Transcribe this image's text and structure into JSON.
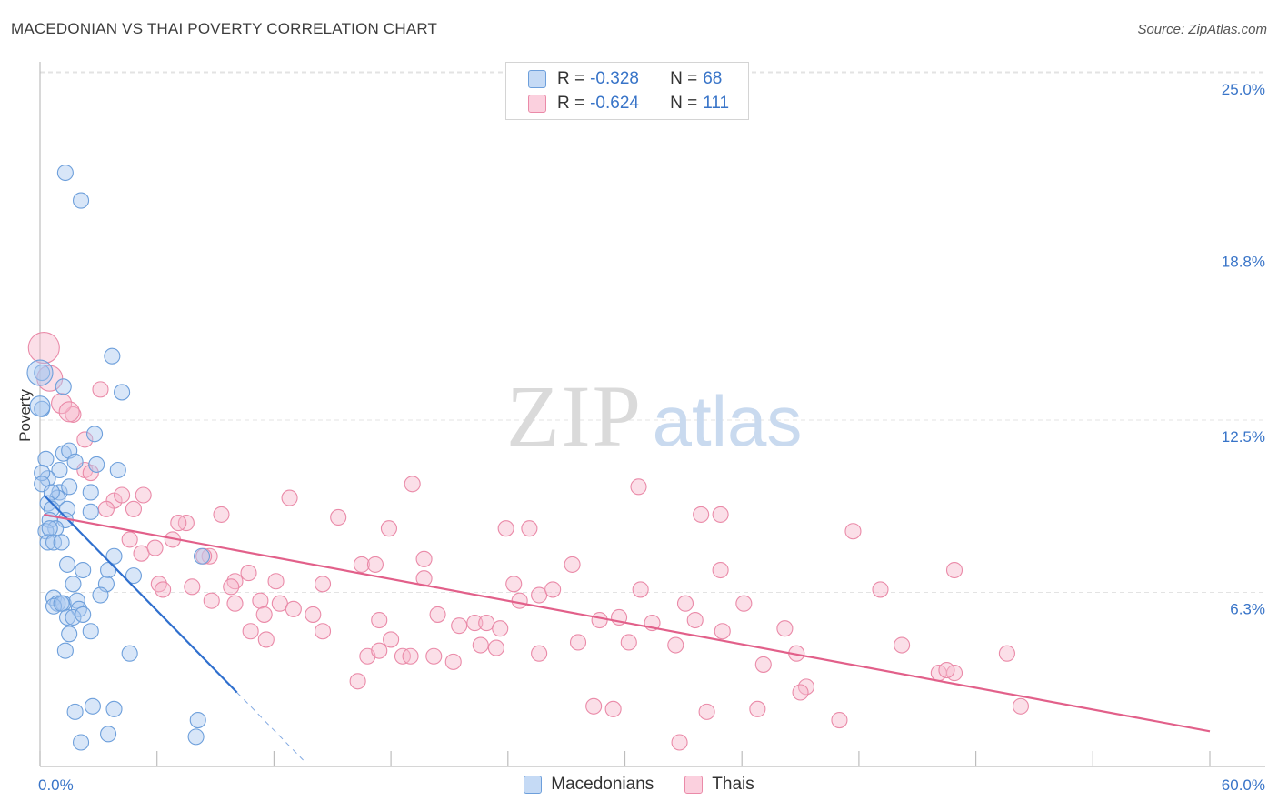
{
  "title": "MACEDONIAN VS THAI POVERTY CORRELATION CHART",
  "source": "Source: ZipAtlas.com",
  "watermark": {
    "zip": "ZIP",
    "atlas": "atlas"
  },
  "legend": {
    "rows": [
      {
        "r_label": "R =",
        "r_value": "-0.328",
        "n_label": "N =",
        "n_value": "68"
      },
      {
        "r_label": "R =",
        "r_value": "-0.624",
        "n_label": "N =",
        "n_value": "111"
      }
    ]
  },
  "colors": {
    "blue_fill": "#a9c8ef",
    "blue_stroke": "#6d9fdb",
    "blue_line": "#2f6fce",
    "pink_fill": "#f6b9cc",
    "pink_stroke": "#ea8aa8",
    "pink_line": "#e2608a",
    "tick_label": "#3874c8",
    "grid": "#e3e3e3"
  },
  "chart_data": {
    "type": "scatter",
    "title": "MACEDONIAN VS THAI POVERTY CORRELATION CHART",
    "xlabel": "",
    "ylabel": "Poverty",
    "xlim": [
      0,
      60
    ],
    "ylim": [
      0,
      25
    ],
    "x_tick_labels": [
      "0.0%",
      "60.0%"
    ],
    "y_ticks": [
      6.3,
      12.5,
      18.8,
      25.0
    ],
    "y_tick_labels": [
      "6.3%",
      "12.5%",
      "18.8%",
      "25.0%"
    ],
    "grid": true,
    "legend_position": "top-center",
    "series": [
      {
        "name": "Macedonians",
        "color": "blue",
        "r": -0.328,
        "n": 68,
        "trend": {
          "x0": 0.2,
          "y0": 9.8,
          "x1": 10.1,
          "y1": 2.7,
          "dashed_to_x": 13.5
        },
        "points": [
          [
            1.3,
            21.4
          ],
          [
            2.1,
            20.4
          ],
          [
            0.1,
            14.2
          ],
          [
            3.7,
            14.8
          ],
          [
            4.2,
            13.5
          ],
          [
            1.2,
            13.7
          ],
          [
            0.1,
            12.9
          ],
          [
            2.8,
            12.0
          ],
          [
            0.3,
            11.1
          ],
          [
            1.2,
            11.3
          ],
          [
            1.5,
            11.4
          ],
          [
            1.8,
            11.0
          ],
          [
            2.9,
            10.9
          ],
          [
            4.0,
            10.7
          ],
          [
            1.0,
            10.7
          ],
          [
            0.4,
            10.4
          ],
          [
            0.1,
            10.6
          ],
          [
            0.1,
            10.2
          ],
          [
            1.0,
            9.9
          ],
          [
            0.9,
            9.7
          ],
          [
            1.5,
            10.1
          ],
          [
            0.6,
            9.9
          ],
          [
            2.6,
            9.9
          ],
          [
            0.4,
            9.5
          ],
          [
            0.6,
            9.3
          ],
          [
            1.4,
            9.3
          ],
          [
            0.5,
            8.9
          ],
          [
            1.3,
            8.9
          ],
          [
            0.8,
            8.6
          ],
          [
            2.6,
            9.2
          ],
          [
            0.3,
            8.5
          ],
          [
            0.5,
            8.6
          ],
          [
            0.4,
            8.1
          ],
          [
            0.7,
            8.1
          ],
          [
            1.1,
            8.1
          ],
          [
            3.8,
            7.6
          ],
          [
            8.3,
            7.6
          ],
          [
            1.4,
            7.3
          ],
          [
            2.2,
            7.1
          ],
          [
            3.5,
            7.1
          ],
          [
            4.8,
            6.9
          ],
          [
            1.7,
            6.6
          ],
          [
            3.4,
            6.6
          ],
          [
            3.1,
            6.2
          ],
          [
            0.7,
            6.1
          ],
          [
            0.9,
            5.9
          ],
          [
            1.2,
            5.9
          ],
          [
            1.9,
            6.0
          ],
          [
            0.7,
            5.8
          ],
          [
            1.1,
            5.9
          ],
          [
            2.0,
            5.7
          ],
          [
            1.4,
            5.4
          ],
          [
            1.7,
            5.4
          ],
          [
            2.2,
            5.5
          ],
          [
            2.6,
            4.9
          ],
          [
            1.5,
            4.8
          ],
          [
            1.3,
            4.2
          ],
          [
            4.6,
            4.1
          ],
          [
            2.7,
            2.2
          ],
          [
            3.8,
            2.1
          ],
          [
            1.8,
            2.0
          ],
          [
            8.1,
            1.7
          ],
          [
            3.5,
            1.2
          ],
          [
            8.0,
            1.1
          ],
          [
            2.1,
            0.9
          ]
        ],
        "large_points": [
          [
            0.0,
            14.2,
            14
          ],
          [
            0.0,
            13.0,
            11
          ]
        ]
      },
      {
        "name": "Thais",
        "color": "pink",
        "r": -0.624,
        "n": 111,
        "trend": {
          "x0": 0.2,
          "y0": 9.1,
          "x1": 60,
          "y1": 1.3
        },
        "points": [
          [
            3.1,
            13.6
          ],
          [
            1.7,
            12.7
          ],
          [
            2.3,
            11.8
          ],
          [
            2.3,
            10.7
          ],
          [
            2.6,
            10.6
          ],
          [
            3.8,
            9.6
          ],
          [
            4.2,
            9.8
          ],
          [
            5.3,
            9.8
          ],
          [
            3.4,
            9.3
          ],
          [
            4.8,
            9.3
          ],
          [
            9.3,
            9.1
          ],
          [
            7.5,
            8.8
          ],
          [
            7.1,
            8.8
          ],
          [
            6.8,
            8.2
          ],
          [
            4.6,
            8.2
          ],
          [
            5.2,
            7.7
          ],
          [
            5.9,
            7.9
          ],
          [
            8.7,
            7.6
          ],
          [
            8.4,
            7.6
          ],
          [
            12.8,
            9.7
          ],
          [
            15.3,
            9.0
          ],
          [
            17.9,
            8.6
          ],
          [
            19.1,
            10.2
          ],
          [
            23.9,
            8.6
          ],
          [
            25.1,
            8.6
          ],
          [
            30.7,
            10.1
          ],
          [
            33.9,
            9.1
          ],
          [
            34.9,
            9.1
          ],
          [
            41.7,
            8.5
          ],
          [
            46.9,
            7.1
          ],
          [
            16.5,
            7.3
          ],
          [
            17.2,
            7.3
          ],
          [
            19.7,
            7.5
          ],
          [
            27.3,
            7.3
          ],
          [
            34.9,
            7.1
          ],
          [
            10.7,
            7.0
          ],
          [
            6.1,
            6.6
          ],
          [
            10.0,
            6.7
          ],
          [
            14.5,
            6.6
          ],
          [
            19.7,
            6.8
          ],
          [
            24.3,
            6.6
          ],
          [
            7.8,
            6.5
          ],
          [
            9.8,
            6.5
          ],
          [
            12.1,
            6.7
          ],
          [
            25.6,
            6.2
          ],
          [
            26.3,
            6.4
          ],
          [
            30.8,
            6.4
          ],
          [
            43.1,
            6.4
          ],
          [
            6.3,
            6.4
          ],
          [
            8.8,
            6.0
          ],
          [
            10.0,
            5.9
          ],
          [
            11.3,
            6.0
          ],
          [
            12.3,
            5.9
          ],
          [
            13.0,
            5.7
          ],
          [
            14.0,
            5.5
          ],
          [
            11.5,
            5.5
          ],
          [
            20.4,
            5.5
          ],
          [
            24.6,
            6.0
          ],
          [
            33.1,
            5.9
          ],
          [
            36.1,
            5.9
          ],
          [
            22.3,
            5.2
          ],
          [
            22.9,
            5.2
          ],
          [
            17.4,
            5.3
          ],
          [
            21.5,
            5.1
          ],
          [
            23.6,
            5.0
          ],
          [
            28.7,
            5.3
          ],
          [
            29.7,
            5.4
          ],
          [
            31.4,
            5.2
          ],
          [
            33.6,
            5.3
          ],
          [
            14.5,
            4.9
          ],
          [
            10.8,
            4.9
          ],
          [
            11.6,
            4.6
          ],
          [
            16.8,
            4.0
          ],
          [
            17.4,
            4.2
          ],
          [
            18.0,
            4.6
          ],
          [
            18.6,
            4.0
          ],
          [
            19.0,
            4.0
          ],
          [
            20.2,
            4.0
          ],
          [
            21.2,
            3.8
          ],
          [
            22.6,
            4.4
          ],
          [
            23.4,
            4.3
          ],
          [
            25.6,
            4.1
          ],
          [
            27.6,
            4.5
          ],
          [
            30.2,
            4.5
          ],
          [
            32.6,
            4.4
          ],
          [
            35.0,
            4.9
          ],
          [
            38.2,
            5.0
          ],
          [
            38.8,
            4.1
          ],
          [
            37.1,
            3.7
          ],
          [
            44.2,
            4.4
          ],
          [
            49.6,
            4.1
          ],
          [
            39.3,
            2.9
          ],
          [
            39.0,
            2.7
          ],
          [
            46.1,
            3.4
          ],
          [
            46.9,
            3.4
          ],
          [
            46.5,
            3.5
          ],
          [
            16.3,
            3.1
          ],
          [
            28.4,
            2.2
          ],
          [
            29.4,
            2.1
          ],
          [
            34.2,
            2.0
          ],
          [
            36.8,
            2.1
          ],
          [
            41.0,
            1.7
          ],
          [
            50.3,
            2.2
          ],
          [
            32.8,
            0.9
          ]
        ],
        "large_points": [
          [
            0.2,
            15.1,
            17
          ],
          [
            0.5,
            14.0,
            14
          ],
          [
            1.1,
            13.1,
            11
          ],
          [
            1.5,
            12.8,
            11
          ]
        ]
      }
    ]
  }
}
